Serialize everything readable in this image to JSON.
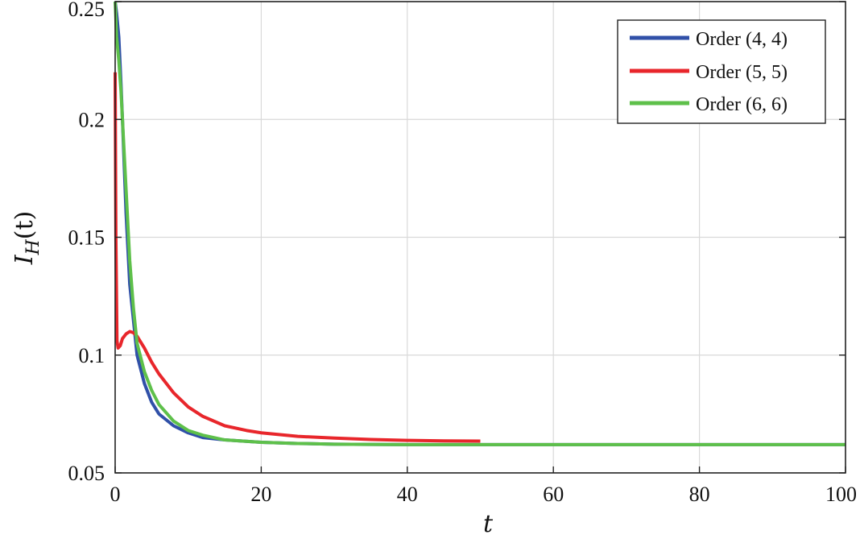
{
  "chart_data": {
    "type": "line",
    "title": "",
    "xlabel": "t",
    "ylabel": "I_H(t)",
    "ylabel_main": "I",
    "ylabel_sub": "H",
    "ylabel_arg": "(t)",
    "xlim": [
      0,
      100
    ],
    "ylim": [
      0.05,
      0.25
    ],
    "x_ticks": [
      "0",
      "20",
      "40",
      "60",
      "80",
      "100"
    ],
    "y_ticks": [
      "0.05",
      "0.1",
      "0.15",
      "0.2",
      "0.25"
    ],
    "grid": true,
    "legend_position": "top-right",
    "series": [
      {
        "name": "Order (4, 4)",
        "color": "#3050a8",
        "x": [
          0,
          0.2,
          0.5,
          0.8,
          1,
          1.5,
          2,
          3,
          4,
          5,
          6,
          8,
          10,
          12,
          15,
          20,
          25,
          30,
          35,
          40,
          50,
          60,
          80,
          100
        ],
        "y": [
          0.25,
          0.245,
          0.235,
          0.215,
          0.2,
          0.16,
          0.13,
          0.1,
          0.088,
          0.08,
          0.075,
          0.07,
          0.067,
          0.065,
          0.064,
          0.063,
          0.0625,
          0.0622,
          0.0621,
          0.062,
          0.062,
          0.062,
          0.062,
          0.062
        ]
      },
      {
        "name": "Order (5, 5)",
        "color": "#e8262b",
        "x": [
          0,
          0.1,
          0.25,
          0.4,
          0.7,
          1,
          1.5,
          2,
          2.5,
          3,
          4,
          5,
          6,
          8,
          10,
          12,
          15,
          18,
          20,
          25,
          30,
          35,
          40,
          45,
          50
        ],
        "y": [
          0.22,
          0.15,
          0.106,
          0.103,
          0.104,
          0.107,
          0.109,
          0.11,
          0.1095,
          0.108,
          0.103,
          0.097,
          0.092,
          0.084,
          0.078,
          0.074,
          0.07,
          0.068,
          0.067,
          0.0655,
          0.0648,
          0.0642,
          0.0638,
          0.0636,
          0.0635
        ]
      },
      {
        "name": "Order (6, 6)",
        "color": "#5ec04a",
        "x": [
          0,
          0.2,
          0.5,
          0.8,
          1,
          1.5,
          2,
          2.5,
          3,
          4,
          5,
          6,
          8,
          10,
          12,
          15,
          20,
          25,
          30,
          40,
          50,
          60,
          80,
          100
        ],
        "y": [
          0.255,
          0.235,
          0.225,
          0.212,
          0.2,
          0.17,
          0.14,
          0.12,
          0.105,
          0.093,
          0.085,
          0.079,
          0.072,
          0.068,
          0.066,
          0.064,
          0.063,
          0.0625,
          0.0622,
          0.062,
          0.062,
          0.062,
          0.062,
          0.062
        ]
      }
    ]
  }
}
